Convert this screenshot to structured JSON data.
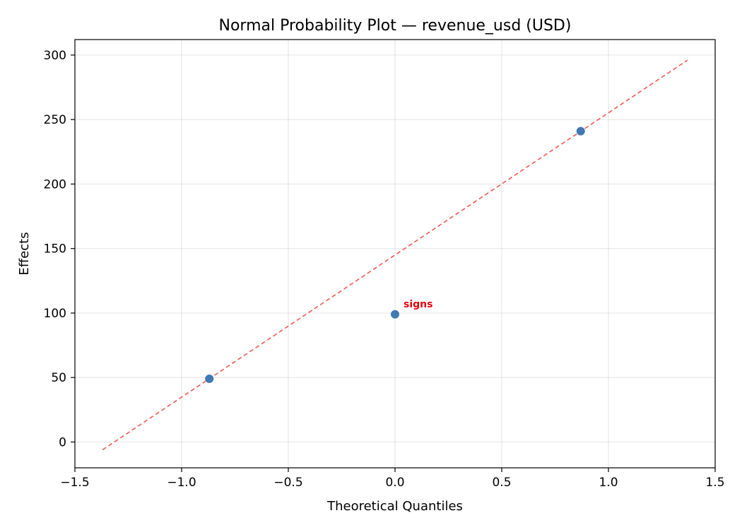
{
  "chart_data": {
    "type": "scatter",
    "title": "Normal Probability Plot — revenue_usd (USD)",
    "xlabel": "Theoretical Quantiles",
    "ylabel": "Effects",
    "xlim": [
      -1.5,
      1.5
    ],
    "ylim": [
      -20,
      312
    ],
    "xticks": [
      -1.5,
      -1.0,
      -0.5,
      0.0,
      0.5,
      1.0,
      1.5
    ],
    "xtick_labels": [
      "−1.5",
      "−1.0",
      "−0.5",
      "0.0",
      "0.5",
      "1.0",
      "1.5"
    ],
    "yticks": [
      0,
      50,
      100,
      150,
      200,
      250,
      300
    ],
    "ytick_labels": [
      "0",
      "50",
      "100",
      "150",
      "200",
      "250",
      "300"
    ],
    "grid": true,
    "points": [
      {
        "x": -0.87,
        "y": 49
      },
      {
        "x": 0.0,
        "y": 99
      },
      {
        "x": 0.87,
        "y": 241
      }
    ],
    "reference_line": {
      "x": [
        -1.37,
        1.37
      ],
      "y": [
        -6,
        296
      ],
      "color": "#ee5a52",
      "style": "dashed"
    },
    "annotations": [
      {
        "text": "signs",
        "x": 0.0,
        "y": 99,
        "color": "#e8000b"
      }
    ],
    "point_color": "#4079b4"
  }
}
